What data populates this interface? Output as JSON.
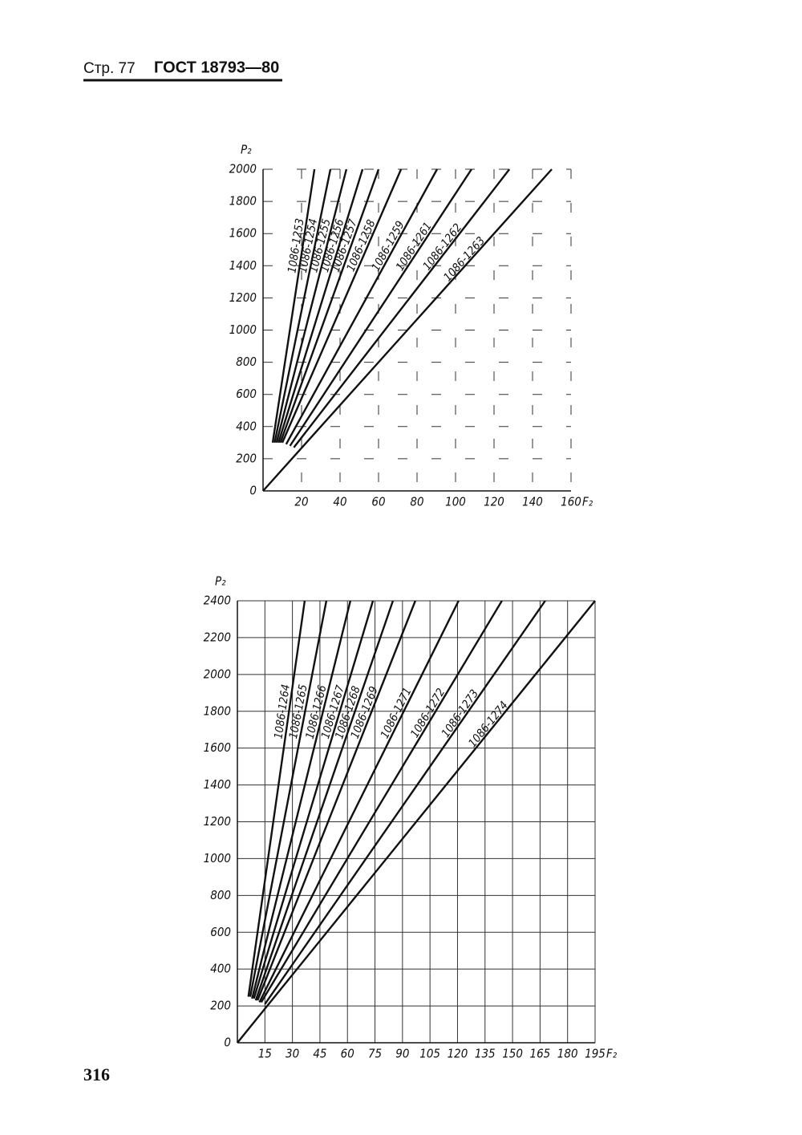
{
  "header": {
    "page": "Стр. 77",
    "standard": "ГОСТ 18793—80"
  },
  "page_number": "316",
  "chart_data": [
    {
      "type": "line",
      "x_label": "F₂",
      "y_label": "P₂",
      "grid": "dashed",
      "color": "#111111",
      "xlim": [
        0,
        160
      ],
      "ylim": [
        0,
        2000
      ],
      "xticks": [
        20,
        40,
        60,
        80,
        100,
        120,
        140,
        160
      ],
      "yticks": [
        0,
        200,
        400,
        600,
        800,
        1000,
        1200,
        1400,
        1600,
        1800,
        2000
      ],
      "series": [
        {
          "name": "1086-1253",
          "x": [
            5,
            26.7
          ],
          "values": [
            300,
            2000
          ]
        },
        {
          "name": "1086-1254",
          "x": [
            6,
            35
          ],
          "values": [
            300,
            2000
          ]
        },
        {
          "name": "1086-1255",
          "x": [
            7,
            43.3
          ],
          "values": [
            300,
            2000
          ]
        },
        {
          "name": "1086-1256",
          "x": [
            8,
            51.7
          ],
          "values": [
            300,
            2000
          ]
        },
        {
          "name": "1086-1257",
          "x": [
            9,
            60
          ],
          "values": [
            300,
            2000
          ]
        },
        {
          "name": "1086-1258",
          "x": [
            10,
            71.7
          ],
          "values": [
            300,
            2000
          ]
        },
        {
          "name": "1086-1259",
          "x": [
            12,
            90.4
          ],
          "values": [
            290,
            2000
          ]
        },
        {
          "name": "1086-1261",
          "x": [
            14,
            108.3
          ],
          "values": [
            280,
            2000
          ]
        },
        {
          "name": "1086-1262",
          "x": [
            16,
            128
          ],
          "values": [
            270,
            2000
          ]
        },
        {
          "name": "1086-1263",
          "x": [
            0,
            150
          ],
          "values": [
            0,
            2000
          ]
        }
      ]
    },
    {
      "type": "line",
      "x_label": "F₂",
      "y_label": "P₂",
      "grid": "solid",
      "color": "#111111",
      "xlim": [
        0,
        195
      ],
      "ylim": [
        0,
        2400
      ],
      "xticks": [
        15,
        30,
        45,
        60,
        75,
        90,
        105,
        120,
        135,
        150,
        165,
        180,
        195
      ],
      "yticks": [
        0,
        200,
        400,
        600,
        800,
        1000,
        1200,
        1400,
        1600,
        1800,
        2000,
        2200,
        2400
      ],
      "series": [
        {
          "name": "1086-1264",
          "x": [
            6,
            36.7
          ],
          "values": [
            250,
            2400
          ]
        },
        {
          "name": "1086-1265",
          "x": [
            7,
            48.5
          ],
          "values": [
            250,
            2400
          ]
        },
        {
          "name": "1086-1266",
          "x": [
            8,
            61.6
          ],
          "values": [
            240,
            2400
          ]
        },
        {
          "name": "1086-1267",
          "x": [
            9,
            73.9
          ],
          "values": [
            240,
            2400
          ]
        },
        {
          "name": "1086-1268",
          "x": [
            10,
            84.8
          ],
          "values": [
            230,
            2400
          ]
        },
        {
          "name": "1086-1269",
          "x": [
            11,
            97
          ],
          "values": [
            230,
            2400
          ]
        },
        {
          "name": "1086-1271",
          "x": [
            12,
            120.6
          ],
          "values": [
            220,
            2400
          ]
        },
        {
          "name": "1086-1272",
          "x": [
            13,
            144.2
          ],
          "values": [
            220,
            2400
          ]
        },
        {
          "name": "1086-1273",
          "x": [
            15,
            167.8
          ],
          "values": [
            210,
            2400
          ]
        },
        {
          "name": "1086-1274",
          "x": [
            0,
            195
          ],
          "values": [
            0,
            2400
          ]
        }
      ]
    }
  ]
}
